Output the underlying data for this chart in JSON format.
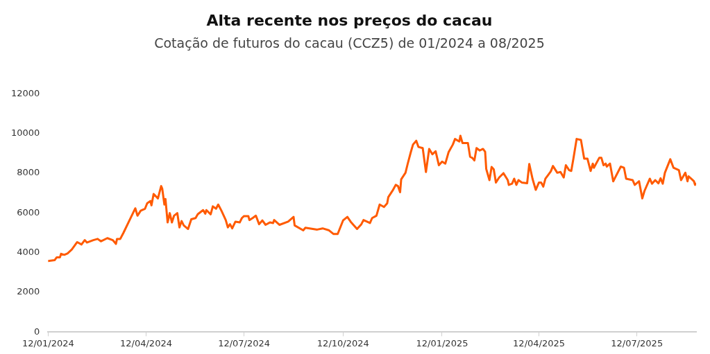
{
  "chart_data": {
    "type": "line",
    "title": "Alta recente nos preços do cacau",
    "subtitle": "Cotação de futuros do cacau (CCZ5) de 01/2024 a 08/2025",
    "x": [
      "2024-01-12",
      "2024-01-18",
      "2024-01-20",
      "2024-01-23",
      "2024-01-24",
      "2024-01-27",
      "2024-01-30",
      "2024-02-03",
      "2024-02-08",
      "2024-02-12",
      "2024-02-15",
      "2024-02-17",
      "2024-02-23",
      "2024-02-27",
      "2024-03-01",
      "2024-03-07",
      "2024-03-12",
      "2024-03-15",
      "2024-03-16",
      "2024-03-19",
      "2024-03-22",
      "2024-03-27",
      "2024-04-02",
      "2024-04-04",
      "2024-04-07",
      "2024-04-11",
      "2024-04-13",
      "2024-04-16",
      "2024-04-17",
      "2024-04-19",
      "2024-04-23",
      "2024-04-26",
      "2024-04-27",
      "2024-04-29",
      "2024-04-30",
      "2024-05-02",
      "2024-05-04",
      "2024-05-06",
      "2024-05-08",
      "2024-05-11",
      "2024-05-13",
      "2024-05-15",
      "2024-05-17",
      "2024-05-21",
      "2024-05-24",
      "2024-05-28",
      "2024-05-30",
      "2024-06-04",
      "2024-06-06",
      "2024-06-07",
      "2024-06-11",
      "2024-06-13",
      "2024-06-16",
      "2024-06-18",
      "2024-06-21",
      "2024-06-25",
      "2024-06-27",
      "2024-06-29",
      "2024-07-01",
      "2024-07-04",
      "2024-07-08",
      "2024-07-10",
      "2024-07-12",
      "2024-07-16",
      "2024-07-17",
      "2024-07-20",
      "2024-07-23",
      "2024-07-26",
      "2024-07-29",
      "2024-08-01",
      "2024-08-05",
      "2024-08-08",
      "2024-08-09",
      "2024-08-14",
      "2024-08-22",
      "2024-08-27",
      "2024-08-28",
      "2024-09-05",
      "2024-09-07",
      "2024-09-12",
      "2024-09-18",
      "2024-09-23",
      "2024-09-29",
      "2024-10-03",
      "2024-10-07",
      "2024-10-12",
      "2024-10-16",
      "2024-10-19",
      "2024-10-25",
      "2024-10-29",
      "2024-10-31",
      "2024-11-06",
      "2024-11-08",
      "2024-11-12",
      "2024-11-15",
      "2024-11-19",
      "2024-11-22",
      "2024-11-23",
      "2024-11-27",
      "2024-11-30",
      "2024-12-02",
      "2024-12-04",
      "2024-12-05",
      "2024-12-09",
      "2024-12-11",
      "2024-12-14",
      "2024-12-16",
      "2024-12-19",
      "2024-12-21",
      "2024-12-25",
      "2024-12-28",
      "2024-12-31",
      "2025-01-03",
      "2025-01-06",
      "2025-01-09",
      "2025-01-12",
      "2025-01-15",
      "2025-01-18",
      "2025-01-22",
      "2025-01-24",
      "2025-01-28",
      "2025-01-29",
      "2025-01-31",
      "2025-02-05",
      "2025-02-07",
      "2025-02-09",
      "2025-02-11",
      "2025-02-13",
      "2025-02-16",
      "2025-02-19",
      "2025-02-21",
      "2025-02-22",
      "2025-02-25",
      "2025-02-27",
      "2025-03-01",
      "2025-03-03",
      "2025-03-06",
      "2025-03-10",
      "2025-03-14",
      "2025-03-15",
      "2025-03-18",
      "2025-03-20",
      "2025-03-22",
      "2025-03-24",
      "2025-03-27",
      "2025-04-01",
      "2025-04-03",
      "2025-04-06",
      "2025-04-09",
      "2025-04-12",
      "2025-04-14",
      "2025-04-16",
      "2025-04-18",
      "2025-04-23",
      "2025-04-25",
      "2025-04-29",
      "2025-05-02",
      "2025-05-05",
      "2025-05-07",
      "2025-05-10",
      "2025-05-12",
      "2025-05-14",
      "2025-05-17",
      "2025-05-21",
      "2025-05-24",
      "2025-05-27",
      "2025-05-30",
      "2025-06-01",
      "2025-06-02",
      "2025-06-07",
      "2025-06-09",
      "2025-06-11",
      "2025-06-13",
      "2025-06-14",
      "2025-06-17",
      "2025-06-20",
      "2025-06-27",
      "2025-06-30",
      "2025-07-02",
      "2025-07-08",
      "2025-07-10",
      "2025-07-14",
      "2025-07-17",
      "2025-07-19",
      "2025-07-24",
      "2025-07-26",
      "2025-07-29",
      "2025-08-01",
      "2025-08-03",
      "2025-08-05",
      "2025-08-07",
      "2025-08-12",
      "2025-08-15",
      "2025-08-20",
      "2025-08-22",
      "2025-08-26",
      "2025-08-28",
      "2025-08-29",
      "2025-09-03",
      "2025-09-04",
      "2025-09-05"
    ],
    "series": [
      {
        "color": "#ff5a00",
        "values": [
          3580,
          3620,
          3765,
          3765,
          3940,
          3890,
          3960,
          4160,
          4530,
          4410,
          4630,
          4510,
          4630,
          4690,
          4570,
          4730,
          4630,
          4440,
          4690,
          4690,
          5000,
          5560,
          6230,
          5860,
          6110,
          6210,
          6480,
          6600,
          6380,
          6950,
          6730,
          7350,
          7220,
          6420,
          6700,
          5520,
          5990,
          5520,
          5860,
          5990,
          5270,
          5590,
          5370,
          5190,
          5680,
          5740,
          5930,
          6140,
          5960,
          6140,
          5930,
          6330,
          6210,
          6420,
          6110,
          5640,
          5270,
          5430,
          5220,
          5560,
          5520,
          5740,
          5840,
          5840,
          5640,
          5740,
          5860,
          5430,
          5620,
          5400,
          5520,
          5490,
          5640,
          5400,
          5560,
          5800,
          5370,
          5120,
          5250,
          5210,
          5160,
          5220,
          5120,
          4940,
          4940,
          5620,
          5800,
          5560,
          5190,
          5430,
          5640,
          5490,
          5740,
          5860,
          6420,
          6300,
          6480,
          6790,
          7120,
          7410,
          7350,
          7040,
          7690,
          8020,
          8460,
          9070,
          9440,
          9630,
          9320,
          9260,
          8060,
          9220,
          8950,
          9100,
          8400,
          8580,
          8480,
          9050,
          9440,
          9720,
          9590,
          9880,
          9510,
          9510,
          8830,
          8770,
          8640,
          9260,
          9140,
          9220,
          9070,
          8210,
          7650,
          8310,
          8190,
          7530,
          7780,
          8000,
          7650,
          7410,
          7470,
          7720,
          7410,
          7650,
          7530,
          7490,
          8460,
          7720,
          7160,
          7530,
          7530,
          7320,
          7720,
          8090,
          8360,
          8020,
          8060,
          7780,
          8400,
          8150,
          8110,
          8730,
          9720,
          9670,
          8730,
          8730,
          8110,
          8480,
          8270,
          8770,
          8770,
          8400,
          8480,
          8330,
          8480,
          7590,
          8330,
          8270,
          7720,
          7650,
          7410,
          7590,
          6730,
          7100,
          7720,
          7470,
          7650,
          7490,
          7740,
          7470,
          8020,
          8700,
          8270,
          8150,
          7650,
          8020,
          7590,
          7840,
          7590,
          7410,
          7470
        ]
      }
    ],
    "xlim": [
      "2024-01-12",
      "2025-09-05"
    ],
    "xticks": [
      {
        "value": "2024-01-12",
        "label": "12/01/2024"
      },
      {
        "value": "2024-04-12",
        "label": "12/04/2024"
      },
      {
        "value": "2024-07-12",
        "label": "12/07/2024"
      },
      {
        "value": "2024-10-12",
        "label": "12/10/2024"
      },
      {
        "value": "2025-01-12",
        "label": "12/01/2025"
      },
      {
        "value": "2025-04-12",
        "label": "12/04/2025"
      },
      {
        "value": "2025-07-12",
        "label": "12/07/2025"
      }
    ],
    "ylim": [
      0,
      12000
    ],
    "yticks": [
      0,
      2000,
      4000,
      6000,
      8000,
      10000,
      12000
    ],
    "grid": false,
    "legend": false,
    "marker": "none",
    "line_style": "solid"
  }
}
